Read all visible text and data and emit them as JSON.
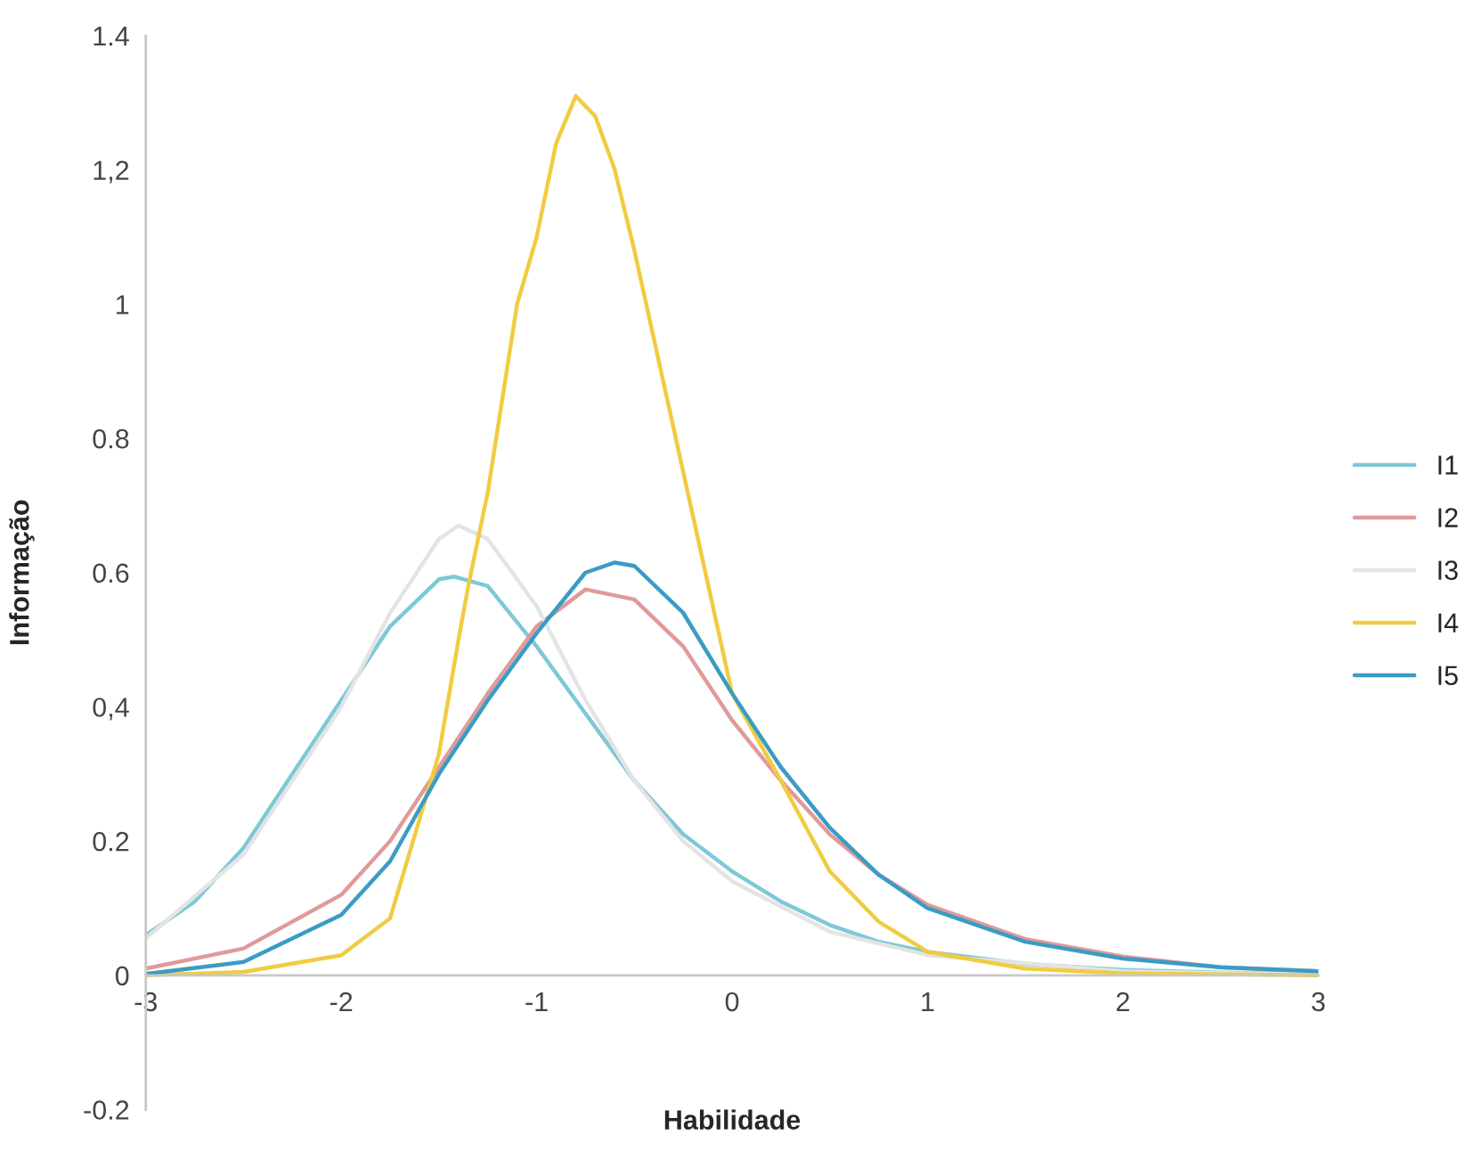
{
  "chart_data": {
    "type": "line",
    "xlabel": "Habilidade",
    "ylabel": "Informação",
    "xlim": [
      -3,
      3
    ],
    "ylim": [
      -0.2,
      1.4
    ],
    "xticks": [
      {
        "value": -3,
        "label": "-3"
      },
      {
        "value": -2,
        "label": "-2"
      },
      {
        "value": -1,
        "label": "-1"
      },
      0,
      1,
      2,
      3
    ],
    "yticks": [
      {
        "value": -0.2,
        "label": "-0.2"
      },
      0,
      0.2,
      {
        "value": 0.4,
        "label": "0,4"
      },
      0.6,
      0.8,
      1,
      {
        "value": 1.2,
        "label": "1,2"
      },
      1.4
    ],
    "grid": false,
    "legend": "right",
    "marker": "none",
    "line_style": "solid",
    "series": [
      {
        "name": "I1",
        "color": "#7ec8d8",
        "x": [
          -3,
          -2.75,
          -2.5,
          -2.25,
          -2,
          -1.75,
          -1.5,
          -1.42,
          -1.25,
          -1,
          -0.75,
          -0.5,
          -0.25,
          0,
          0.25,
          0.5,
          0.75,
          1,
          1.5,
          2,
          2.5,
          3
        ],
        "values": [
          0.06,
          0.11,
          0.19,
          0.3,
          0.41,
          0.52,
          0.59,
          0.594,
          0.58,
          0.49,
          0.39,
          0.29,
          0.21,
          0.155,
          0.11,
          0.075,
          0.05,
          0.035,
          0.017,
          0.008,
          0.004,
          0.002
        ]
      },
      {
        "name": "I2",
        "color": "#e09a9a",
        "x": [
          -3,
          -2.5,
          -2,
          -1.75,
          -1.5,
          -1.25,
          -1,
          -0.75,
          -0.5,
          -0.25,
          0,
          0.25,
          0.5,
          0.75,
          1,
          1.5,
          2,
          2.5,
          3
        ],
        "values": [
          0.01,
          0.04,
          0.12,
          0.2,
          0.31,
          0.42,
          0.52,
          0.575,
          0.56,
          0.49,
          0.38,
          0.29,
          0.21,
          0.15,
          0.105,
          0.054,
          0.028,
          0.012,
          0.006
        ]
      },
      {
        "name": "I3",
        "color": "#e4e4e4",
        "x": [
          -3,
          -2.5,
          -2,
          -1.75,
          -1.5,
          -1.4,
          -1.25,
          -1,
          -0.75,
          -0.5,
          -0.25,
          0,
          0.5,
          1,
          2,
          3
        ],
        "values": [
          0.055,
          0.18,
          0.4,
          0.54,
          0.65,
          0.67,
          0.65,
          0.55,
          0.41,
          0.29,
          0.2,
          0.14,
          0.065,
          0.03,
          0.006,
          0.001
        ]
      },
      {
        "name": "I4",
        "color": "#f0cc40",
        "x": [
          -3,
          -2.5,
          -2,
          -1.75,
          -1.5,
          -1.4,
          -1.35,
          -1.25,
          -1.1,
          -1,
          -0.9,
          -0.8,
          -0.7,
          -0.6,
          -0.5,
          -0.25,
          0,
          0.25,
          0.5,
          0.75,
          1,
          1.5,
          2,
          3
        ],
        "values": [
          0,
          0.005,
          0.03,
          0.085,
          0.33,
          0.5,
          0.58,
          0.72,
          1.0,
          1.1,
          1.24,
          1.31,
          1.28,
          1.2,
          1.08,
          0.75,
          0.42,
          0.29,
          0.155,
          0.08,
          0.035,
          0.01,
          0.003,
          0
        ]
      },
      {
        "name": "I5",
        "color": "#3a9cc4",
        "x": [
          -3,
          -2.5,
          -2,
          -1.75,
          -1.5,
          -1.25,
          -1,
          -0.75,
          -0.6,
          -0.5,
          -0.25,
          0,
          0.25,
          0.5,
          0.75,
          1,
          1.5,
          2,
          2.5,
          3
        ],
        "values": [
          0.002,
          0.02,
          0.09,
          0.17,
          0.3,
          0.41,
          0.51,
          0.6,
          0.615,
          0.61,
          0.54,
          0.42,
          0.31,
          0.22,
          0.15,
          0.1,
          0.05,
          0.025,
          0.012,
          0.006
        ]
      }
    ]
  }
}
